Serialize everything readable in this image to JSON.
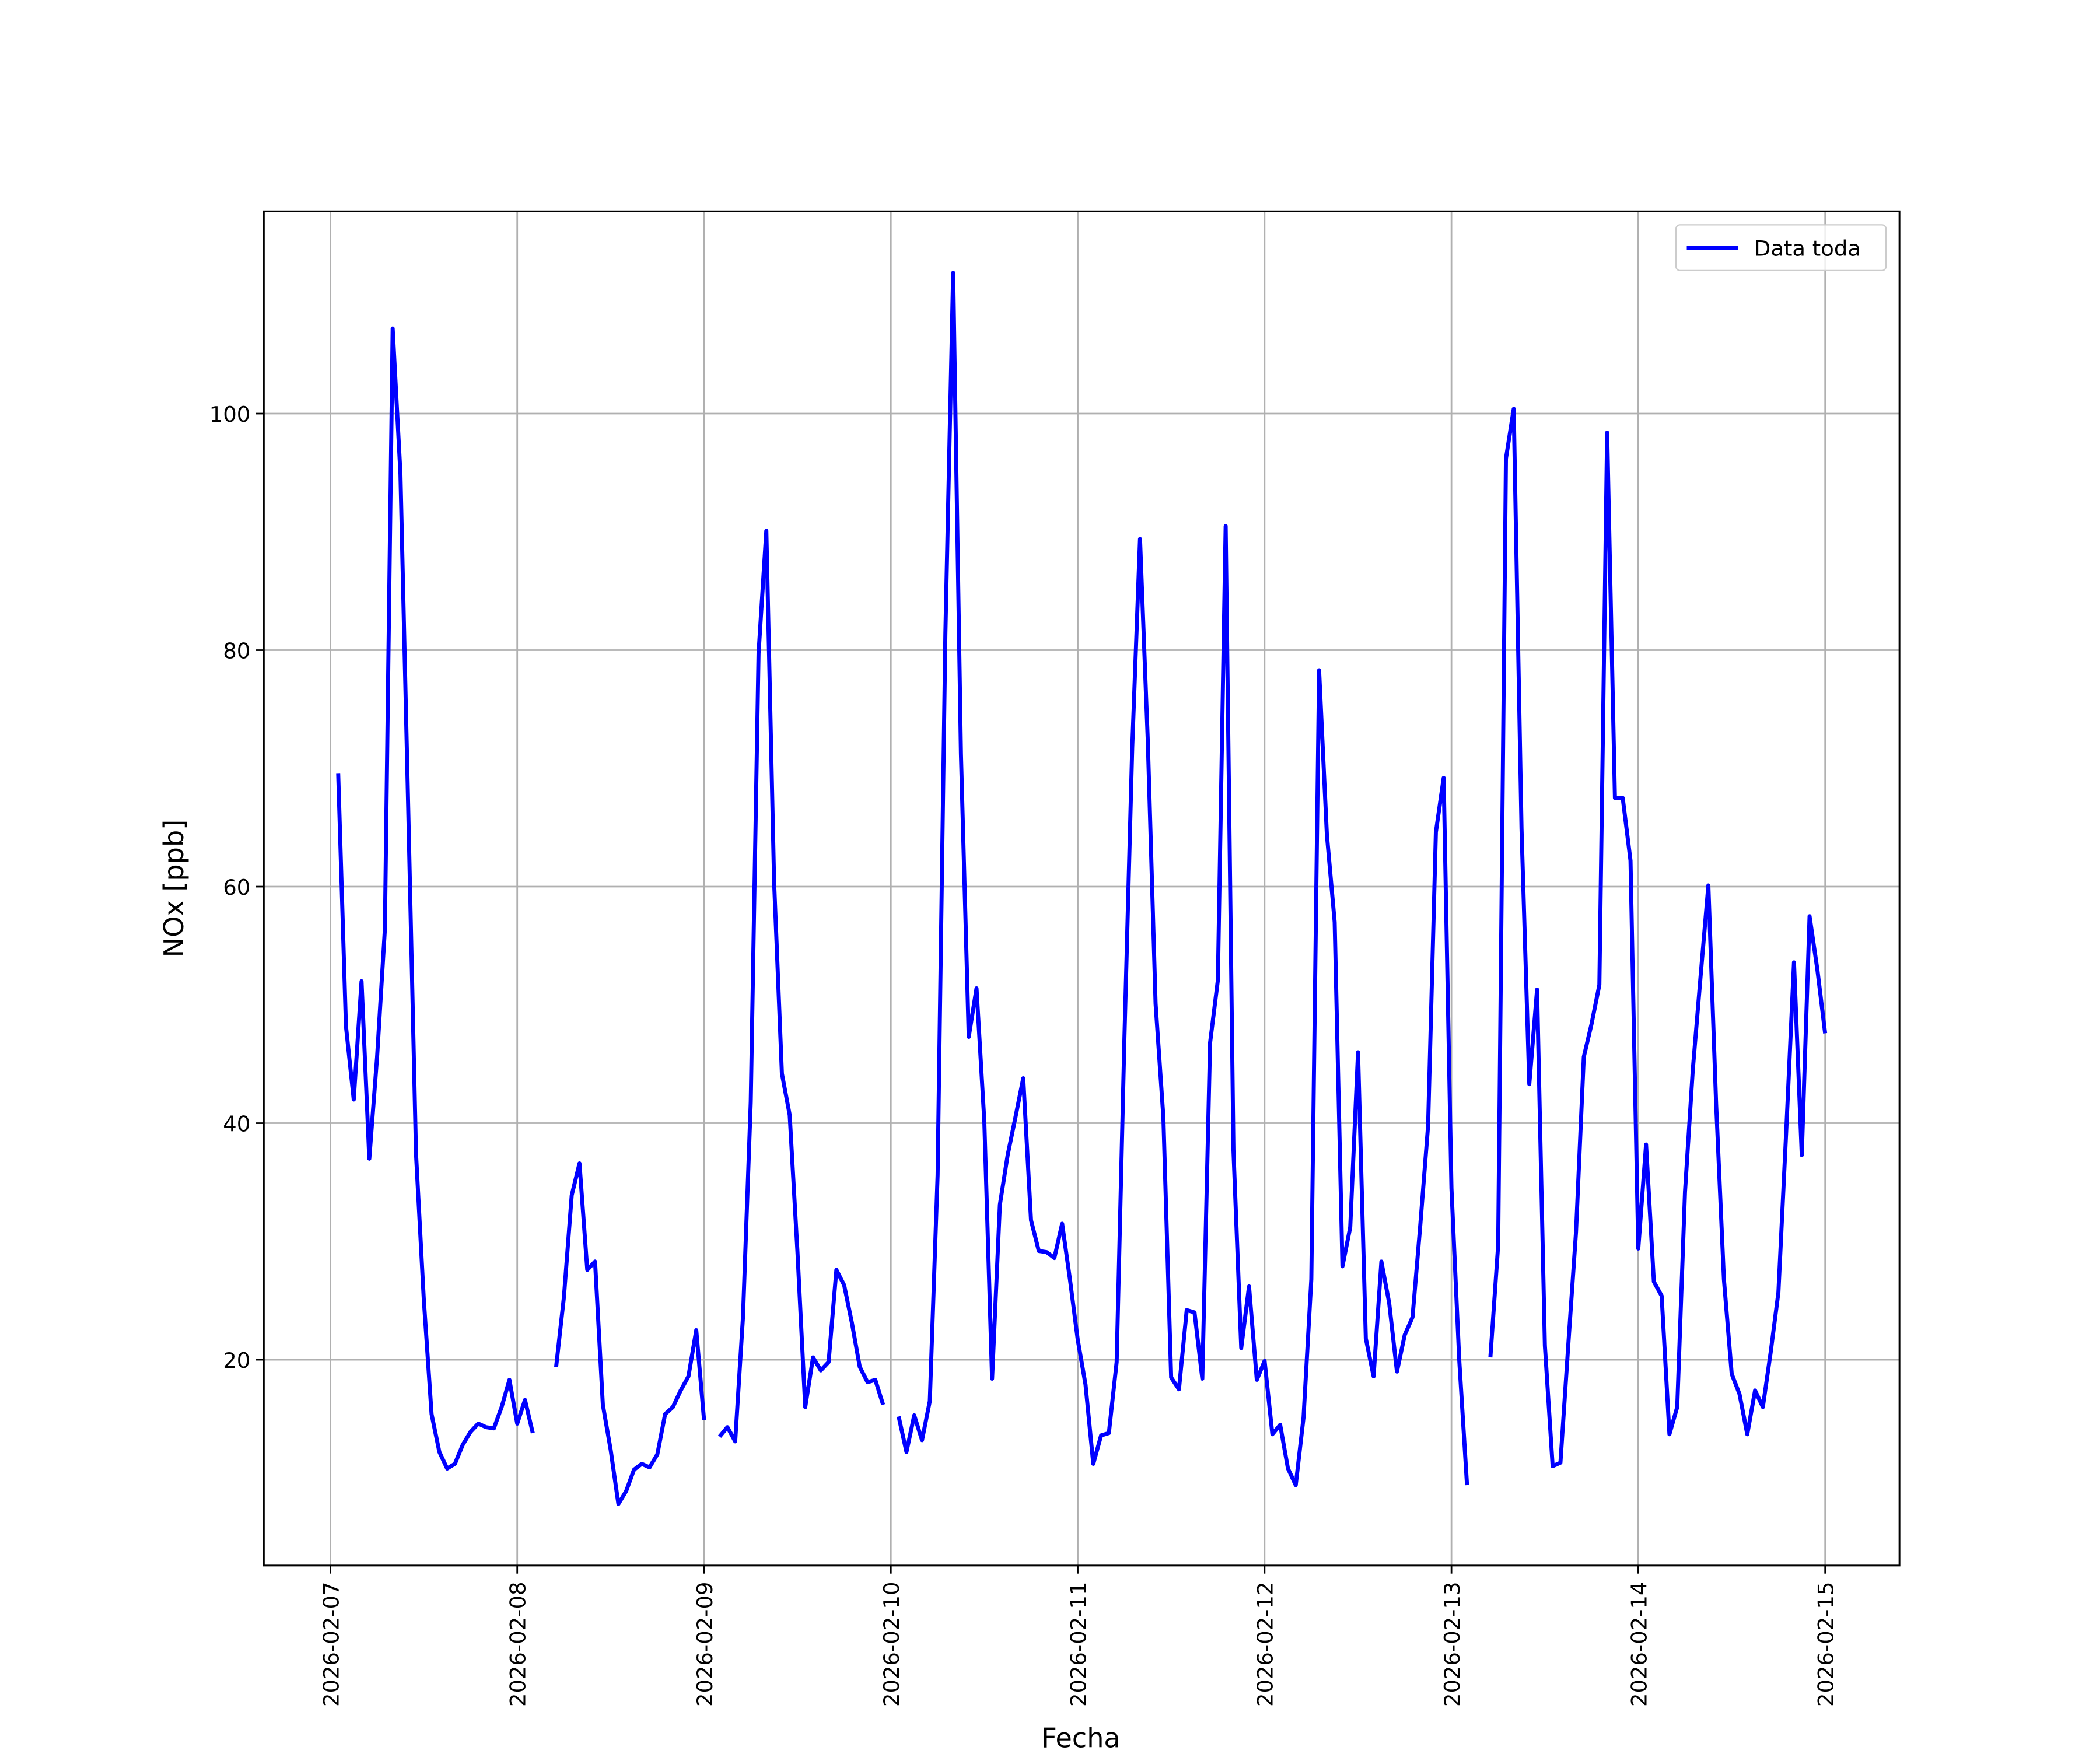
{
  "chart_data": {
    "type": "line",
    "xlabel": "Fecha",
    "ylabel": "NOx [ppb]",
    "legend": "upper right",
    "grid": true,
    "xlim": [
      "2026-02-06T15:27",
      "2026-02-15T09:33"
    ],
    "xticks": [
      "2026-02-07",
      "2026-02-08",
      "2026-02-09",
      "2026-02-10",
      "2026-02-11",
      "2026-02-12",
      "2026-02-13",
      "2026-02-14",
      "2026-02-15"
    ],
    "ylim": [
      2.6,
      117.1
    ],
    "yticks": [
      20,
      40,
      60,
      80,
      100
    ],
    "x": [
      "2026-02-07T01:00",
      "2026-02-07T02:00",
      "2026-02-07T03:00",
      "2026-02-07T04:00",
      "2026-02-07T05:00",
      "2026-02-07T06:00",
      "2026-02-07T07:00",
      "2026-02-07T08:00",
      "2026-02-07T09:00",
      "2026-02-07T10:00",
      "2026-02-07T11:00",
      "2026-02-07T12:00",
      "2026-02-07T13:00",
      "2026-02-07T14:00",
      "2026-02-07T15:00",
      "2026-02-07T16:00",
      "2026-02-07T17:00",
      "2026-02-07T18:00",
      "2026-02-07T19:00",
      "2026-02-07T20:00",
      "2026-02-07T21:00",
      "2026-02-07T22:00",
      "2026-02-07T23:00",
      "2026-02-08T00:00",
      "2026-02-08T01:00",
      "2026-02-08T02:00",
      "2026-02-08T03:00",
      "2026-02-08T04:00",
      "2026-02-08T05:00",
      "2026-02-08T06:00",
      "2026-02-08T07:00",
      "2026-02-08T08:00",
      "2026-02-08T09:00",
      "2026-02-08T10:00",
      "2026-02-08T11:00",
      "2026-02-08T12:00",
      "2026-02-08T13:00",
      "2026-02-08T14:00",
      "2026-02-08T15:00",
      "2026-02-08T16:00",
      "2026-02-08T17:00",
      "2026-02-08T18:00",
      "2026-02-08T19:00",
      "2026-02-08T20:00",
      "2026-02-08T21:00",
      "2026-02-08T22:00",
      "2026-02-08T23:00",
      "2026-02-09T00:00",
      "2026-02-09T01:00",
      "2026-02-09T02:00",
      "2026-02-09T03:00",
      "2026-02-09T04:00",
      "2026-02-09T05:00",
      "2026-02-09T06:00",
      "2026-02-09T07:00",
      "2026-02-09T08:00",
      "2026-02-09T09:00",
      "2026-02-09T10:00",
      "2026-02-09T11:00",
      "2026-02-09T12:00",
      "2026-02-09T13:00",
      "2026-02-09T14:00",
      "2026-02-09T15:00",
      "2026-02-09T16:00",
      "2026-02-09T17:00",
      "2026-02-09T18:00",
      "2026-02-09T19:00",
      "2026-02-09T20:00",
      "2026-02-09T21:00",
      "2026-02-09T22:00",
      "2026-02-09T23:00",
      "2026-02-10T00:00",
      "2026-02-10T01:00",
      "2026-02-10T02:00",
      "2026-02-10T03:00",
      "2026-02-10T04:00",
      "2026-02-10T05:00",
      "2026-02-10T06:00",
      "2026-02-10T07:00",
      "2026-02-10T08:00",
      "2026-02-10T09:00",
      "2026-02-10T10:00",
      "2026-02-10T11:00",
      "2026-02-10T12:00",
      "2026-02-10T13:00",
      "2026-02-10T14:00",
      "2026-02-10T15:00",
      "2026-02-10T16:00",
      "2026-02-10T17:00",
      "2026-02-10T18:00",
      "2026-02-10T19:00",
      "2026-02-10T20:00",
      "2026-02-10T21:00",
      "2026-02-10T22:00",
      "2026-02-10T23:00",
      "2026-02-11T00:00",
      "2026-02-11T01:00",
      "2026-02-11T02:00",
      "2026-02-11T03:00",
      "2026-02-11T04:00",
      "2026-02-11T05:00",
      "2026-02-11T06:00",
      "2026-02-11T07:00",
      "2026-02-11T08:00",
      "2026-02-11T09:00",
      "2026-02-11T10:00",
      "2026-02-11T11:00",
      "2026-02-11T12:00",
      "2026-02-11T13:00",
      "2026-02-11T14:00",
      "2026-02-11T15:00",
      "2026-02-11T16:00",
      "2026-02-11T17:00",
      "2026-02-11T18:00",
      "2026-02-11T19:00",
      "2026-02-11T20:00",
      "2026-02-11T21:00",
      "2026-02-11T22:00",
      "2026-02-11T23:00",
      "2026-02-12T00:00",
      "2026-02-12T01:00",
      "2026-02-12T02:00",
      "2026-02-12T03:00",
      "2026-02-12T04:00",
      "2026-02-12T05:00",
      "2026-02-12T06:00",
      "2026-02-12T07:00",
      "2026-02-12T08:00",
      "2026-02-12T09:00",
      "2026-02-12T10:00",
      "2026-02-12T11:00",
      "2026-02-12T12:00",
      "2026-02-12T13:00",
      "2026-02-12T14:00",
      "2026-02-12T15:00",
      "2026-02-12T16:00",
      "2026-02-12T17:00",
      "2026-02-12T18:00",
      "2026-02-12T19:00",
      "2026-02-12T20:00",
      "2026-02-12T21:00",
      "2026-02-12T22:00",
      "2026-02-12T23:00",
      "2026-02-13T00:00",
      "2026-02-13T01:00",
      "2026-02-13T02:00",
      "2026-02-13T03:00",
      "2026-02-13T04:00",
      "2026-02-13T05:00",
      "2026-02-13T06:00",
      "2026-02-13T07:00",
      "2026-02-13T08:00",
      "2026-02-13T09:00",
      "2026-02-13T10:00",
      "2026-02-13T11:00",
      "2026-02-13T12:00",
      "2026-02-13T13:00",
      "2026-02-13T14:00",
      "2026-02-13T15:00",
      "2026-02-13T16:00",
      "2026-02-13T17:00",
      "2026-02-13T18:00",
      "2026-02-13T19:00",
      "2026-02-13T20:00",
      "2026-02-13T21:00",
      "2026-02-13T22:00",
      "2026-02-13T23:00",
      "2026-02-14T00:00",
      "2026-02-14T01:00",
      "2026-02-14T02:00",
      "2026-02-14T03:00",
      "2026-02-14T04:00",
      "2026-02-14T05:00",
      "2026-02-14T06:00",
      "2026-02-14T07:00",
      "2026-02-14T08:00",
      "2026-02-14T09:00",
      "2026-02-14T10:00",
      "2026-02-14T11:00",
      "2026-02-14T12:00",
      "2026-02-14T13:00",
      "2026-02-14T14:00",
      "2026-02-14T15:00",
      "2026-02-14T16:00",
      "2026-02-14T17:00",
      "2026-02-14T18:00",
      "2026-02-14T19:00",
      "2026-02-14T20:00",
      "2026-02-14T21:00",
      "2026-02-14T22:00",
      "2026-02-14T23:00",
      "2026-02-15T00:00"
    ],
    "series": [
      {
        "name": "Data toda",
        "color": "#0000ff",
        "values": [
          69.6,
          48.2,
          42.0,
          52.0,
          37.0,
          45.6,
          56.4,
          107.2,
          94.9,
          66.6,
          37.4,
          25.1,
          15.4,
          12.2,
          10.8,
          11.2,
          12.8,
          13.9,
          14.6,
          14.3,
          14.2,
          16.0,
          18.3,
          14.6,
          16.6,
          13.8,
          null,
          null,
          19.4,
          25.3,
          33.9,
          36.6,
          27.6,
          28.3,
          16.2,
          12.4,
          7.8,
          8.9,
          10.7,
          11.2,
          10.9,
          12.0,
          15.4,
          16.0,
          17.4,
          18.6,
          22.5,
          14.9,
          null,
          13.5,
          14.3,
          13.1,
          23.6,
          41.8,
          79.7,
          90.1,
          60.4,
          44.2,
          40.7,
          29.1,
          16.0,
          20.2,
          19.1,
          19.8,
          27.6,
          26.3,
          23.1,
          19.4,
          18.1,
          18.3,
          16.2,
          null,
          15.2,
          12.2,
          15.3,
          13.2,
          16.5,
          35.6,
          81.4,
          111.9,
          71.2,
          47.3,
          51.4,
          40.2,
          18.4,
          33.1,
          37.3,
          40.5,
          43.8,
          31.8,
          29.2,
          29.1,
          28.6,
          31.5,
          26.8,
          21.7,
          17.9,
          11.2,
          13.6,
          13.8,
          19.8,
          47.3,
          71.8,
          89.4,
          72.3,
          50.1,
          40.5,
          18.5,
          17.5,
          24.2,
          24.0,
          18.4,
          46.8,
          52.1,
          90.5,
          37.7,
          21.0,
          26.2,
          18.3,
          19.9,
          13.7,
          14.5,
          10.8,
          9.4,
          15.1,
          26.8,
          78.3,
          64.4,
          57.0,
          27.9,
          31.2,
          46.0,
          21.8,
          18.6,
          28.3,
          24.8,
          19.0,
          22.1,
          23.6,
          31.4,
          39.8,
          64.6,
          69.2,
          34.5,
          20.0,
          9.4,
          null,
          null,
          20.2,
          29.7,
          96.2,
          100.4,
          64.9,
          43.3,
          51.3,
          21.2,
          11.0,
          11.3,
          21.2,
          30.8,
          45.6,
          48.4,
          51.7,
          98.4,
          67.5,
          67.5,
          62.2,
          29.4,
          38.2,
          26.6,
          25.4,
          13.7,
          16.0,
          34.2,
          44.5,
          52.4,
          60.1,
          41.6,
          26.8,
          18.8,
          17.1,
          13.7,
          17.4,
          16.0,
          20.6,
          25.7,
          39.3,
          53.6,
          37.3,
          57.5,
          53.0,
          47.6
        ]
      }
    ]
  }
}
